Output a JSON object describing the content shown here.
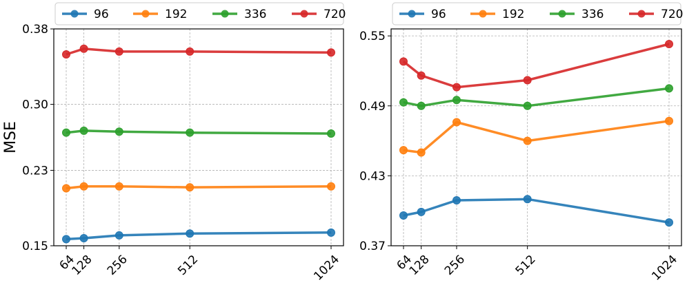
{
  "chart_data": [
    {
      "type": "line",
      "title": "",
      "xlabel": "",
      "ylabel": "MSE",
      "x": [
        64,
        128,
        256,
        512,
        1024
      ],
      "x_tick_labels": [
        "64",
        "128",
        "256",
        "512",
        "1024"
      ],
      "ylim": [
        0.15,
        0.38
      ],
      "y_ticks": [
        0.15,
        0.23,
        0.3,
        0.38
      ],
      "y_tick_labels": [
        "0.15",
        "0.23",
        "0.30",
        "0.38"
      ],
      "grid": true,
      "legend_position": "top",
      "series": [
        {
          "name": "96",
          "color": "#1f77b4",
          "values": [
            0.157,
            0.158,
            0.161,
            0.163,
            0.164
          ]
        },
        {
          "name": "192",
          "color": "#ff7f0e",
          "values": [
            0.211,
            0.213,
            0.213,
            0.212,
            0.213
          ]
        },
        {
          "name": "336",
          "color": "#2ca02c",
          "values": [
            0.27,
            0.272,
            0.271,
            0.27,
            0.269
          ]
        },
        {
          "name": "720",
          "color": "#d62728",
          "values": [
            0.353,
            0.359,
            0.356,
            0.356,
            0.355
          ]
        }
      ]
    },
    {
      "type": "line",
      "title": "",
      "xlabel": "",
      "ylabel": "",
      "x": [
        64,
        128,
        256,
        512,
        1024
      ],
      "x_tick_labels": [
        "64",
        "128",
        "256",
        "512",
        "1024"
      ],
      "ylim": [
        0.37,
        0.556
      ],
      "y_ticks": [
        0.37,
        0.43,
        0.49,
        0.55
      ],
      "y_tick_labels": [
        "0.37",
        "0.43",
        "0.49",
        "0.55"
      ],
      "grid": true,
      "legend_position": "top",
      "series": [
        {
          "name": "96",
          "color": "#1f77b4",
          "values": [
            0.396,
            0.399,
            0.409,
            0.41,
            0.39
          ]
        },
        {
          "name": "192",
          "color": "#ff7f0e",
          "values": [
            0.452,
            0.45,
            0.476,
            0.46,
            0.477
          ]
        },
        {
          "name": "336",
          "color": "#2ca02c",
          "values": [
            0.493,
            0.49,
            0.495,
            0.49,
            0.505
          ]
        },
        {
          "name": "720",
          "color": "#d62728",
          "values": [
            0.528,
            0.516,
            0.506,
            0.512,
            0.543
          ]
        }
      ]
    }
  ]
}
